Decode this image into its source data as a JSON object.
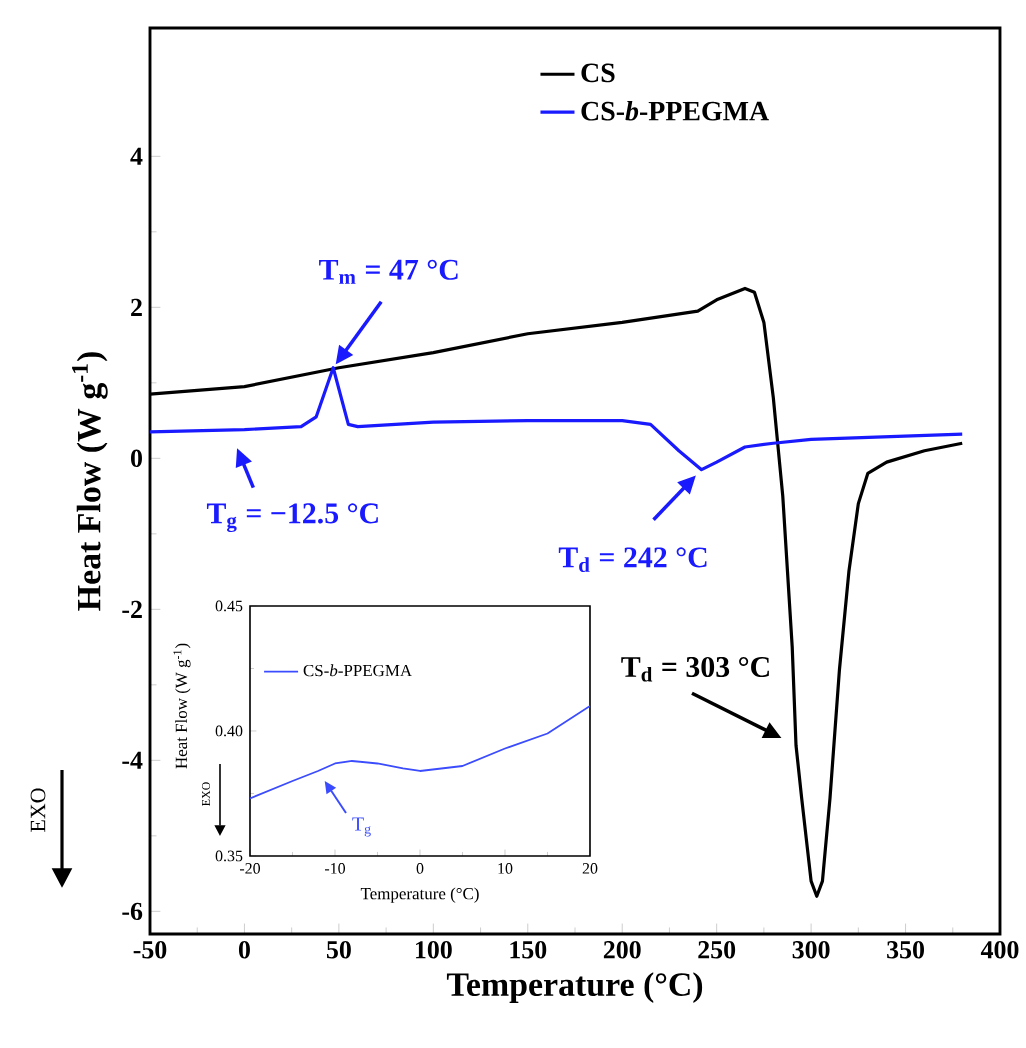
{
  "chart_data": [
    {
      "type": "line",
      "xlabel": "Temperature (°C)",
      "ylabel": "Heat Flow (W g$^{-1}$)",
      "xlim": [
        -50,
        400
      ],
      "ylim": [
        -6.3,
        5.7
      ],
      "xticks": [
        -50,
        0,
        50,
        100,
        150,
        200,
        250,
        300,
        350,
        400
      ],
      "yticks": [
        -6,
        -4,
        -2,
        0,
        2,
        4
      ],
      "legend": "top right",
      "marker": "none",
      "series": [
        {
          "name": "CS",
          "color": "#000000",
          "x": [
            -50,
            0,
            50,
            100,
            150,
            200,
            240,
            250,
            265,
            270,
            275,
            280,
            285,
            290,
            292,
            295,
            300,
            303,
            306,
            310,
            315,
            320,
            325,
            330,
            340,
            360,
            380
          ],
          "values": [
            0.85,
            0.95,
            1.2,
            1.4,
            1.65,
            1.8,
            1.95,
            2.1,
            2.25,
            2.2,
            1.8,
            0.8,
            -0.5,
            -2.5,
            -3.8,
            -4.5,
            -5.6,
            -5.8,
            -5.6,
            -4.5,
            -2.8,
            -1.5,
            -0.6,
            -0.2,
            -0.05,
            0.1,
            0.2
          ]
        },
        {
          "name": "CS-*b*-PPEGMA",
          "color": "#1a1aff",
          "x": [
            -50,
            0,
            30,
            38,
            47,
            55,
            60,
            100,
            150,
            200,
            215,
            230,
            242,
            250,
            265,
            280,
            300,
            380
          ],
          "values": [
            0.35,
            0.38,
            0.42,
            0.55,
            1.2,
            0.45,
            0.42,
            0.48,
            0.5,
            0.5,
            0.45,
            0.1,
            -0.15,
            -0.05,
            0.15,
            0.2,
            0.25,
            0.32
          ]
        }
      ],
      "annotations": [
        {
          "text": "T$_{m}$ = 47 °C",
          "x": 47,
          "y": 1.2
        },
        {
          "text": "T$_{g}$ = −12.5 °C",
          "x": -8,
          "y": 0.38
        },
        {
          "text": "T$_{d}$ = 242 °C",
          "x": 242,
          "y": -0.15
        },
        {
          "text": "T$_{d}$ = 303 °C",
          "x": 292,
          "y": -3.8
        },
        "EXO"
      ]
    },
    {
      "type": "line",
      "xlabel": "Temperature (°C)",
      "ylabel": "Heat Flow (W g$^{-1}$)",
      "xlim": [
        -20,
        20
      ],
      "ylim": [
        0.35,
        0.45
      ],
      "xticks": [
        -20,
        -10,
        0,
        10,
        20
      ],
      "yticks": [
        {
          "value": 0.35,
          "label": "0.35"
        },
        {
          "value": 0.4,
          "label": "0.40"
        },
        {
          "value": 0.45,
          "label": "0.45"
        }
      ],
      "legend": "top left",
      "marker": "none",
      "series": [
        {
          "name": "CS-*b*-PPEGMA",
          "color": "#3b4cff",
          "x": [
            -20,
            -15,
            -12,
            -10,
            -8,
            -5,
            -2,
            0,
            5,
            10,
            15,
            20
          ],
          "values": [
            0.373,
            0.38,
            0.384,
            0.387,
            0.388,
            0.387,
            0.385,
            0.384,
            0.386,
            0.393,
            0.399,
            0.41
          ]
        }
      ],
      "annotations": [
        {
          "text": "T$_{g}$",
          "x": -12,
          "y": 0.384
        },
        "EXO"
      ]
    }
  ]
}
